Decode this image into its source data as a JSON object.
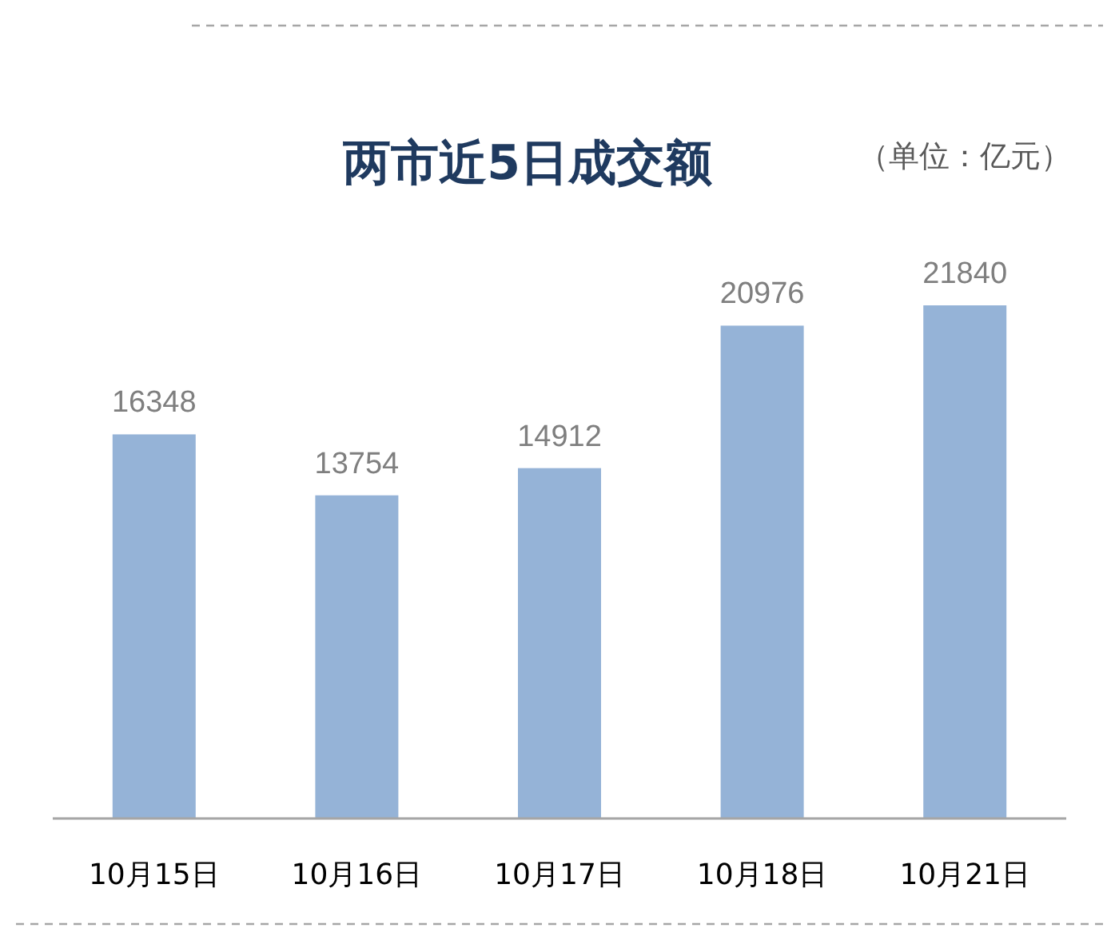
{
  "chart_data": {
    "type": "bar",
    "title": "两市近5日成交额",
    "subtitle": "（单位：亿元）",
    "categories": [
      "10月15日",
      "10月16日",
      "10月17日",
      "10月18日",
      "10月21日"
    ],
    "values": [
      16348,
      13754,
      14912,
      20976,
      21840
    ],
    "color": "#95b3d7",
    "data_labels": true
  }
}
